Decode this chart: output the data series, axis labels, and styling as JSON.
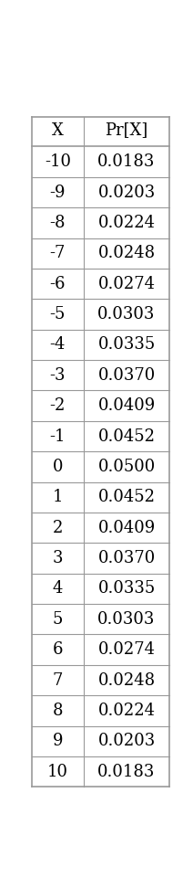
{
  "x_values": [
    -10,
    -9,
    -8,
    -7,
    -6,
    -5,
    -4,
    -3,
    -2,
    -1,
    0,
    1,
    2,
    3,
    4,
    5,
    6,
    7,
    8,
    9,
    10
  ],
  "pr_values": [
    0.0183,
    0.0203,
    0.0224,
    0.0248,
    0.0274,
    0.0303,
    0.0335,
    0.037,
    0.0409,
    0.0452,
    0.05,
    0.0452,
    0.0409,
    0.037,
    0.0335,
    0.0303,
    0.0274,
    0.0248,
    0.0224,
    0.0203,
    0.0183
  ],
  "header_x": "X",
  "header_pr": "Pr[X]",
  "bg_color": "#ffffff",
  "text_color": "#000000",
  "border_color": "#999999",
  "font_size": 13,
  "fig_width": 2.12,
  "fig_height": 9.72,
  "dpi": 100
}
